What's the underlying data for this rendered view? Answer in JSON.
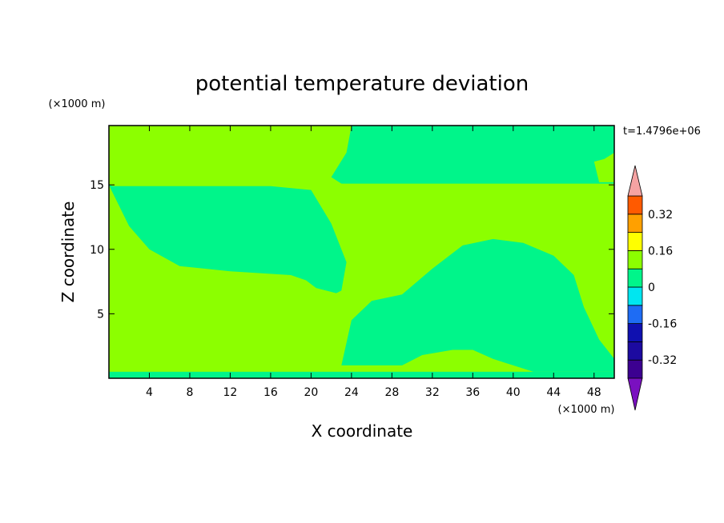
{
  "chart_data": {
    "type": "heatmap",
    "subtype": "filled-contour",
    "title": "potential temperature deviation",
    "xlabel": "X coordinate",
    "ylabel": "Z coordinate",
    "x_unit": "(×1000 m)",
    "y_unit": "(×1000 m)",
    "time_label": "t=1.4796e+06",
    "xlim": [
      0,
      50
    ],
    "ylim": [
      0,
      19.6
    ],
    "xticks": [
      4,
      8,
      12,
      16,
      20,
      24,
      28,
      32,
      36,
      40,
      44,
      48
    ],
    "yticks": [
      5,
      10,
      15
    ],
    "grid": false,
    "background_level": "0 to 0.08",
    "colorbar": {
      "levels": [
        -0.4,
        -0.32,
        -0.24,
        -0.16,
        -0.08,
        0,
        0.08,
        0.16,
        0.24,
        0.32,
        0.4
      ],
      "tick_labels": [
        "0.32",
        "0.16",
        "0",
        "-0.16",
        "-0.32"
      ],
      "tick_values": [
        0.32,
        0.16,
        0,
        -0.16,
        -0.32
      ],
      "colors": [
        "#3c0090",
        "#1c0aa0",
        "#0f10b0",
        "#1e6cf4",
        "#00e6f0",
        "#00f58a",
        "#8cff00",
        "#ffff00",
        "#ffa000",
        "#ff5a00",
        "#ff2020"
      ],
      "under_color": "#7a10c0",
      "over_color": "#f5a3a3",
      "extend": "both",
      "placement": "right"
    },
    "regions": [
      {
        "name": "upper-right-negative",
        "level": "-0.08 to 0",
        "color": "#00f58a",
        "x": [
          24,
          25,
          50,
          50,
          49,
          48,
          48.5,
          50,
          50,
          23,
          22,
          23.5
        ],
        "y": [
          19.6,
          19.6,
          19.6,
          17.5,
          17.0,
          16.8,
          15.2,
          15.2,
          15.1,
          15.1,
          15.6,
          17.5
        ]
      },
      {
        "name": "upper-left-negative",
        "level": "-0.08 to 0",
        "color": "#00f58a",
        "x": [
          0,
          0.3,
          2,
          4,
          7,
          12,
          18,
          19.5,
          20.5,
          22.5,
          23,
          23.5,
          22,
          20,
          16,
          12,
          8,
          4,
          0.4,
          0
        ],
        "y": [
          15,
          14.5,
          11.8,
          10,
          8.7,
          8.3,
          8.0,
          7.6,
          7.0,
          6.6,
          6.8,
          9,
          12,
          14.6,
          14.9,
          14.9,
          14.9,
          14.9,
          14.9,
          15
        ]
      },
      {
        "name": "lower-right-negative",
        "level": "-0.08 to 0",
        "color": "#00f58a",
        "x": [
          23,
          24,
          26,
          29,
          32,
          35,
          38,
          41,
          44,
          46,
          47,
          48.5,
          50,
          50,
          42,
          38,
          36,
          34,
          31,
          29,
          24,
          23
        ],
        "y": [
          1,
          4.5,
          6.0,
          6.5,
          8.5,
          10.3,
          10.8,
          10.5,
          9.5,
          8.0,
          5.5,
          3.0,
          1.5,
          0.5,
          0.5,
          1.5,
          2.2,
          2.2,
          1.8,
          1.0,
          1.0,
          1
        ]
      },
      {
        "name": "bottom-strip",
        "level": "-0.08 to 0",
        "color": "#00f58a",
        "x": [
          0,
          50,
          50,
          0
        ],
        "y": [
          0,
          0,
          0.5,
          0.5
        ]
      }
    ]
  }
}
